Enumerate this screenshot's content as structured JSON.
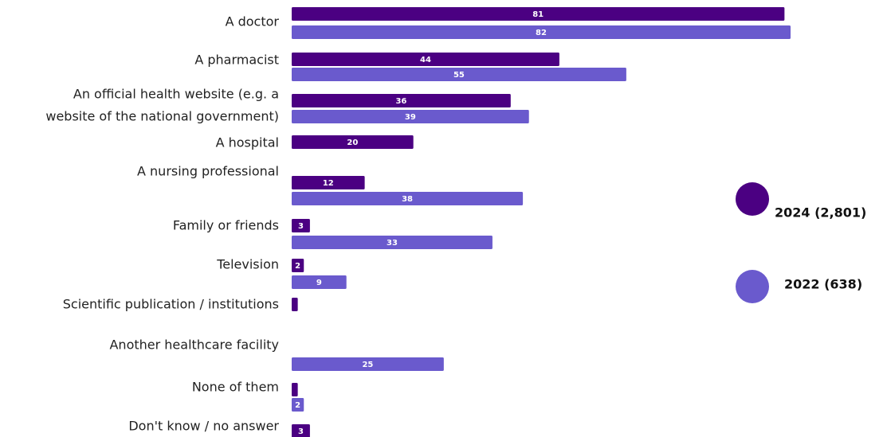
{
  "chart_data": {
    "type": "bar",
    "orientation": "horizontal",
    "categories": [
      [
        "A doctor"
      ],
      [
        "A pharmacist"
      ],
      [
        "An official health website (e.g. a",
        "website of the national government)"
      ],
      [
        "A hospital"
      ],
      [
        "A nursing professional"
      ],
      [
        "Family or friends"
      ],
      [
        "Television"
      ],
      [
        "Scientific publication / institutions"
      ],
      [
        "Another healthcare facility"
      ],
      [
        "None of them"
      ],
      [
        "Don't know / no answer"
      ]
    ],
    "series": [
      {
        "name": "2024 (2,801)",
        "color": "#4b0082",
        "values": [
          81,
          44,
          36,
          20,
          12,
          3,
          2,
          1,
          null,
          1,
          3
        ],
        "labels": [
          "81",
          "44",
          "36",
          "20",
          "12",
          "3",
          "2",
          "",
          "",
          "",
          "3"
        ]
      },
      {
        "name": "2022 (638)",
        "color": "#6a5acd",
        "values": [
          82,
          55,
          39,
          null,
          38,
          33,
          9,
          null,
          25,
          2,
          null
        ],
        "labels": [
          "82",
          "55",
          "39",
          "",
          "38",
          "33",
          "9",
          "",
          "25",
          "2",
          ""
        ]
      }
    ],
    "xlim": [
      0,
      82
    ],
    "legend": "right",
    "grid": false
  }
}
